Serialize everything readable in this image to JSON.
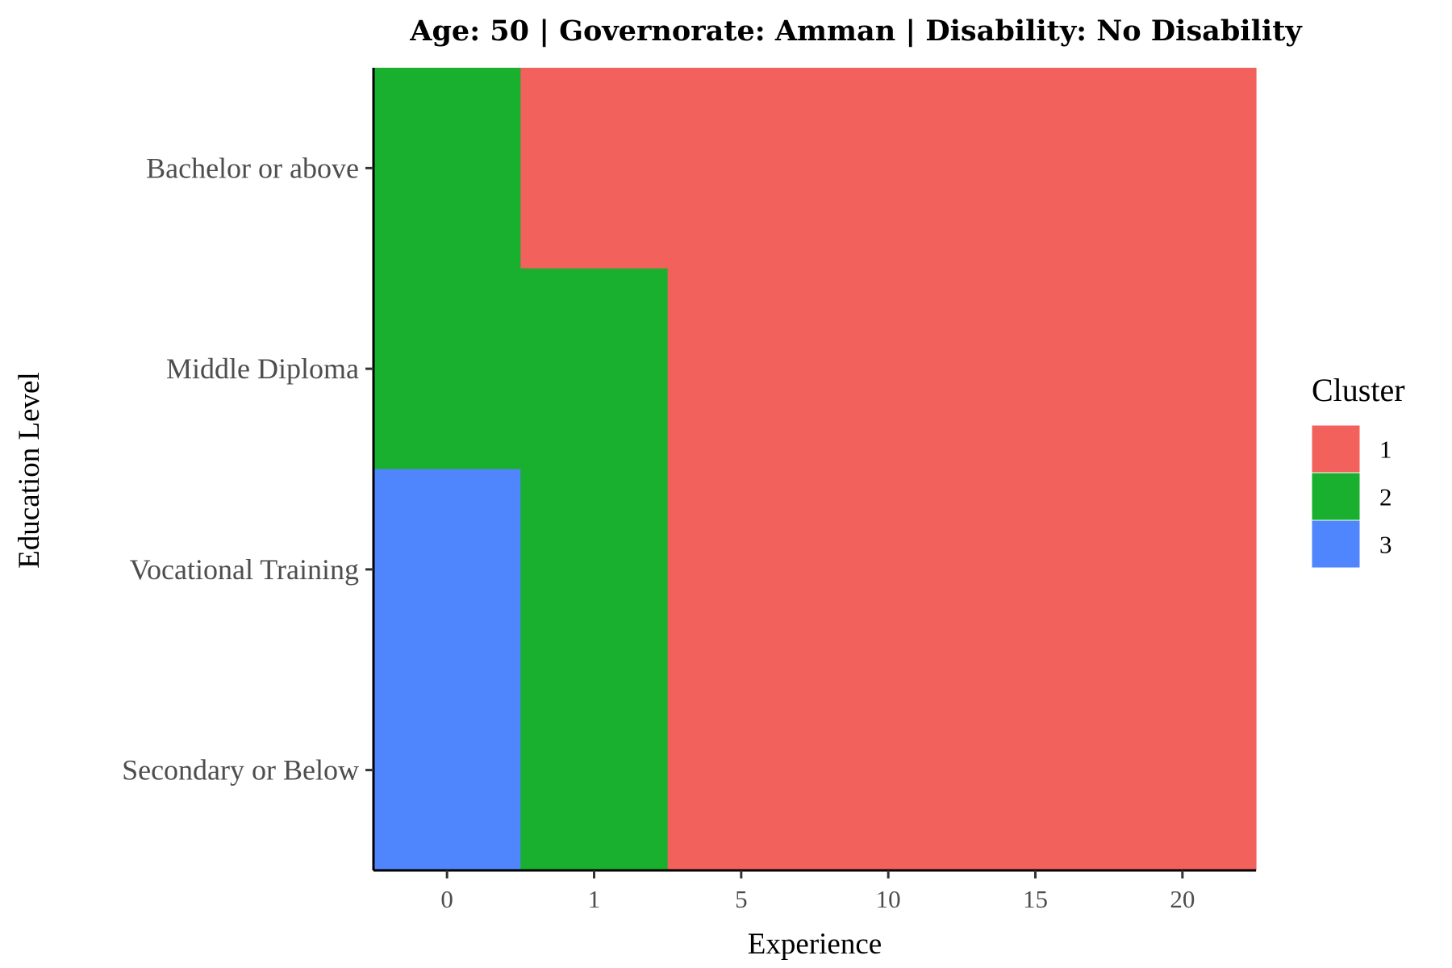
{
  "chart_data": {
    "type": "heatmap",
    "title": "Age: 50 | Governorate: Amman | Disability: No Disability",
    "xlabel": "Experience",
    "ylabel": "Education Level",
    "x_categories": [
      "0",
      "1",
      "5",
      "10",
      "15",
      "20"
    ],
    "y_categories": [
      "Bachelor or above",
      "Middle Diploma",
      "Vocational Training",
      "Secondary or Below"
    ],
    "grid": false,
    "cells": [
      {
        "y": "Bachelor or above",
        "values": [
          2,
          1,
          1,
          1,
          1,
          1
        ]
      },
      {
        "y": "Middle Diploma",
        "values": [
          2,
          2,
          1,
          1,
          1,
          1
        ]
      },
      {
        "y": "Vocational Training",
        "values": [
          3,
          2,
          1,
          1,
          1,
          1
        ]
      },
      {
        "y": "Secondary or Below",
        "values": [
          3,
          2,
          1,
          1,
          1,
          1
        ]
      }
    ],
    "legend": {
      "title": "Cluster",
      "position": "right",
      "entries": [
        {
          "label": "1",
          "color": "#F2615C"
        },
        {
          "label": "2",
          "color": "#18B02E"
        },
        {
          "label": "3",
          "color": "#4F86FE"
        }
      ]
    }
  }
}
